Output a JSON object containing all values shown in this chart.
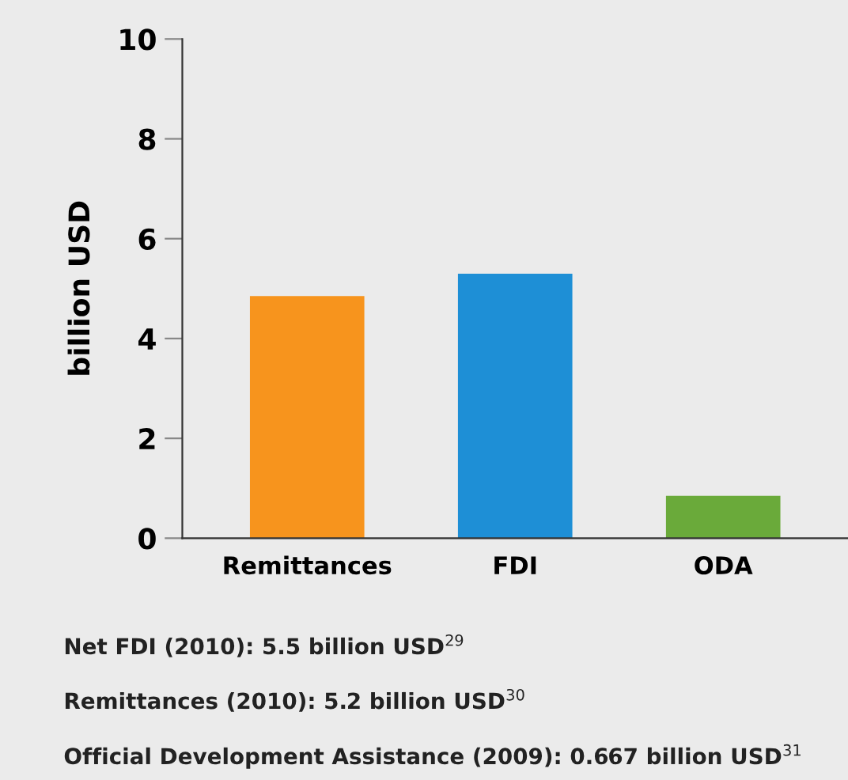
{
  "chart_data": {
    "type": "bar",
    "ylabel": "billion USD",
    "categories": [
      "Remittances",
      "FDI",
      "ODA"
    ],
    "values": [
      4.85,
      5.3,
      0.85
    ],
    "colors": [
      "#f7941d",
      "#1e8fd6",
      "#6aaa3a"
    ],
    "ylim": [
      0,
      10
    ],
    "yticks": [
      0,
      2,
      4,
      6,
      8,
      10
    ],
    "grid": false,
    "legend": false,
    "annotations": [
      "Net FDI (2010): 5.5 billion USD$^{29}$",
      "Remittances (2010): 5.2 billion USD$^{30}$",
      "Official Development Assistance (2009): 0.667 billion USD$^{31}$"
    ]
  }
}
